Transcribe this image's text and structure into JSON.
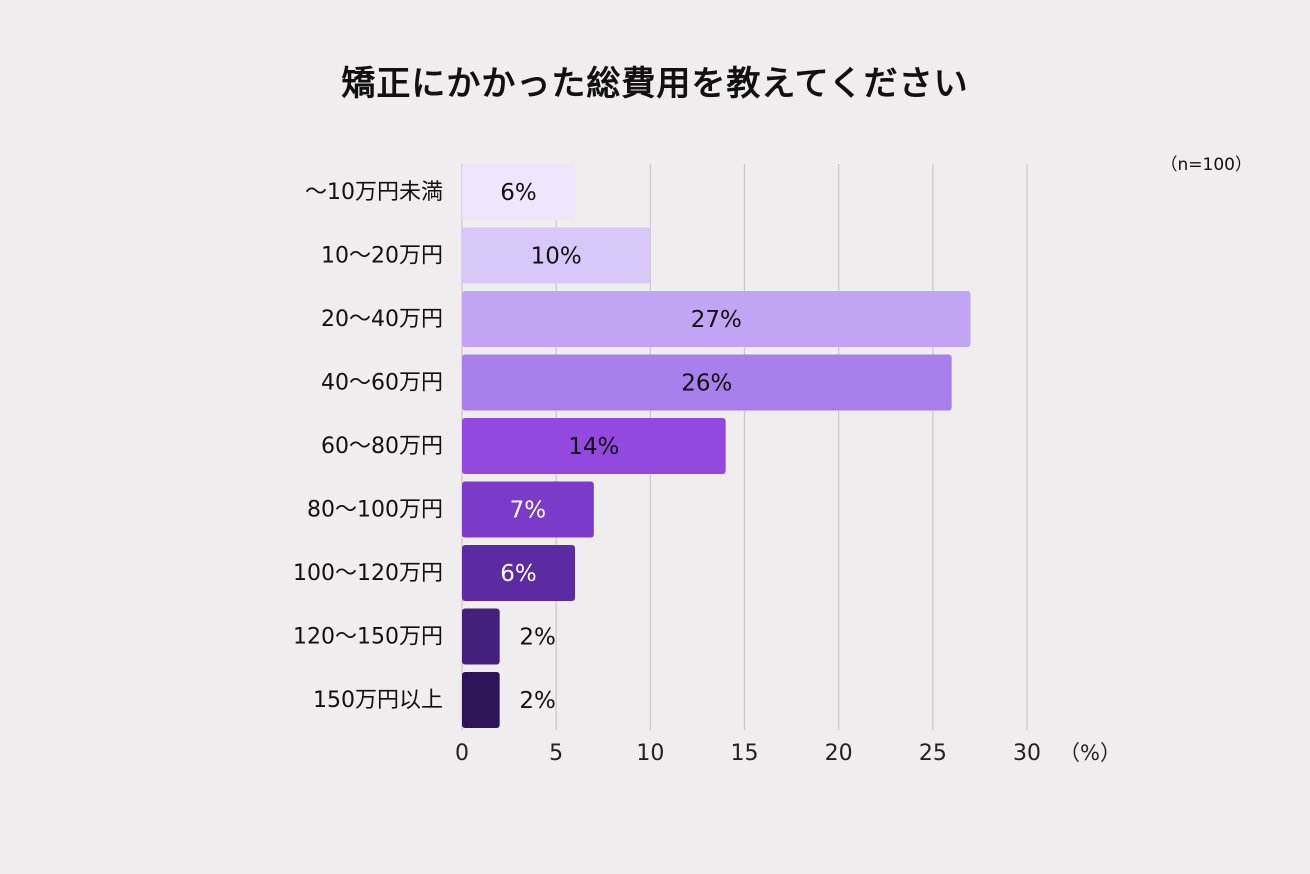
{
  "title": "矯正にかかった総費用を教えてください",
  "sample_note": "（n=100）",
  "unit_label": "（%）",
  "colors": {
    "background": "#efedee",
    "grid": "#c9c7c8",
    "bars": [
      "#efe6fd",
      "#d8c8fa",
      "#c1a5f4",
      "#a880ec",
      "#9349df",
      "#7a3cc8",
      "#5c2ba3",
      "#43207c",
      "#2b1458"
    ]
  },
  "chart_data": {
    "type": "bar",
    "orientation": "horizontal",
    "categories": [
      "～10万円未満",
      "10～20万円",
      "20～40万円",
      "40～60万円",
      "60～80万円",
      "80～100万円",
      "100～120万円",
      "120～150万円",
      "150万円以上"
    ],
    "values": [
      6,
      10,
      27,
      26,
      14,
      7,
      6,
      2,
      2
    ],
    "data_labels": [
      "6%",
      "10%",
      "27%",
      "26%",
      "14%",
      "7%",
      "6%",
      "2%",
      "2%"
    ],
    "xticks": [
      0,
      5,
      10,
      15,
      20,
      25,
      30
    ],
    "xlim": [
      0,
      30
    ],
    "grid": true,
    "legend": "none"
  }
}
